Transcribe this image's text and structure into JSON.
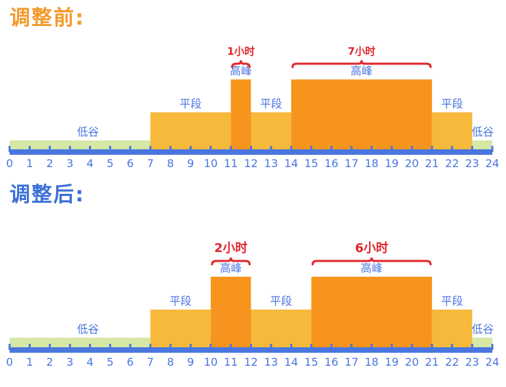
{
  "colors": {
    "valley": "#d6e8a6",
    "flat": "#f6b93b",
    "peak": "#f7941d",
    "axis": "#4a76e0",
    "label": "#4a76e0",
    "duration": "#e0262c",
    "title_before": "#f39a2b",
    "title_after": "#3b6fd8"
  },
  "sections": [
    {
      "title": "调整前:",
      "segments": [
        {
          "start": 0,
          "end": 7,
          "type": "valley",
          "label": "低谷"
        },
        {
          "start": 7,
          "end": 11,
          "type": "flat",
          "label": "平段"
        },
        {
          "start": 11,
          "end": 12,
          "type": "peak",
          "label": "高峰"
        },
        {
          "start": 12,
          "end": 14,
          "type": "flat",
          "label": "平段"
        },
        {
          "start": 14,
          "end": 21,
          "type": "peak",
          "label": "高峰"
        },
        {
          "start": 21,
          "end": 23,
          "type": "flat",
          "label": "平段"
        },
        {
          "start": 23,
          "end": 24,
          "type": "valley",
          "label": "低谷"
        }
      ],
      "durations": [
        {
          "start": 11,
          "end": 12,
          "text": "1小时"
        },
        {
          "start": 14,
          "end": 21,
          "text": "7小时"
        }
      ]
    },
    {
      "title": "调整后:",
      "segments": [
        {
          "start": 0,
          "end": 7,
          "type": "valley",
          "label": "低谷"
        },
        {
          "start": 7,
          "end": 10,
          "type": "flat",
          "label": "平段"
        },
        {
          "start": 10,
          "end": 12,
          "type": "peak",
          "label": "高峰"
        },
        {
          "start": 12,
          "end": 15,
          "type": "flat",
          "label": "平段"
        },
        {
          "start": 15,
          "end": 21,
          "type": "peak",
          "label": "高峰"
        },
        {
          "start": 21,
          "end": 23,
          "type": "flat",
          "label": "平段"
        },
        {
          "start": 23,
          "end": 24,
          "type": "valley",
          "label": "低谷"
        }
      ],
      "durations": [
        {
          "start": 10,
          "end": 12,
          "text": "2小时"
        },
        {
          "start": 15,
          "end": 21,
          "text": "6小时"
        }
      ]
    }
  ],
  "hours": [
    "0",
    "1",
    "2",
    "3",
    "4",
    "5",
    "6",
    "7",
    "8",
    "9",
    "10",
    "11",
    "12",
    "13",
    "14",
    "15",
    "16",
    "17",
    "18",
    "19",
    "20",
    "21",
    "22",
    "23",
    "24"
  ]
}
